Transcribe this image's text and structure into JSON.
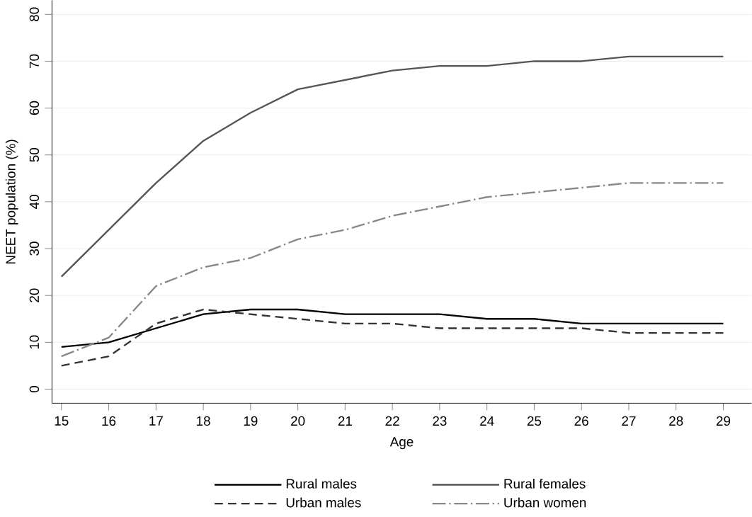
{
  "chart_data": {
    "type": "line",
    "xlabel": "Age",
    "ylabel": "NEET population (%)",
    "x": [
      15,
      16,
      17,
      18,
      19,
      20,
      21,
      22,
      23,
      24,
      25,
      26,
      27,
      28,
      29
    ],
    "series": [
      {
        "name": "Rural males",
        "color": "#000000",
        "line_style": "solid",
        "values": [
          9,
          10,
          13,
          16,
          17,
          17,
          16,
          16,
          16,
          15,
          15,
          14,
          14,
          14,
          14
        ]
      },
      {
        "name": "Rural females",
        "color": "#555555",
        "line_style": "solid",
        "values": [
          24,
          34,
          44,
          53,
          59,
          64,
          66,
          68,
          69,
          69,
          70,
          70,
          71,
          71,
          71
        ]
      },
      {
        "name": "Urban males",
        "color": "#333333",
        "line_style": "dashed",
        "values": [
          5,
          7,
          14,
          17,
          16,
          15,
          14,
          14,
          13,
          13,
          13,
          13,
          12,
          12,
          12
        ]
      },
      {
        "name": "Urban women",
        "color": "#888888",
        "line_style": "dashdot",
        "values": [
          7,
          11,
          22,
          26,
          28,
          32,
          34,
          37,
          39,
          41,
          42,
          43,
          44,
          44,
          44
        ]
      }
    ],
    "xlim": [
      14.8,
      29.6
    ],
    "ylim": [
      -3,
      83
    ],
    "xticks": [
      15,
      16,
      17,
      18,
      19,
      20,
      21,
      22,
      23,
      24,
      25,
      26,
      27,
      28,
      29
    ],
    "yticks": [
      0,
      10,
      20,
      30,
      40,
      50,
      60,
      70,
      80
    ],
    "grid": "y",
    "legend": "bottom",
    "marker": "none"
  }
}
